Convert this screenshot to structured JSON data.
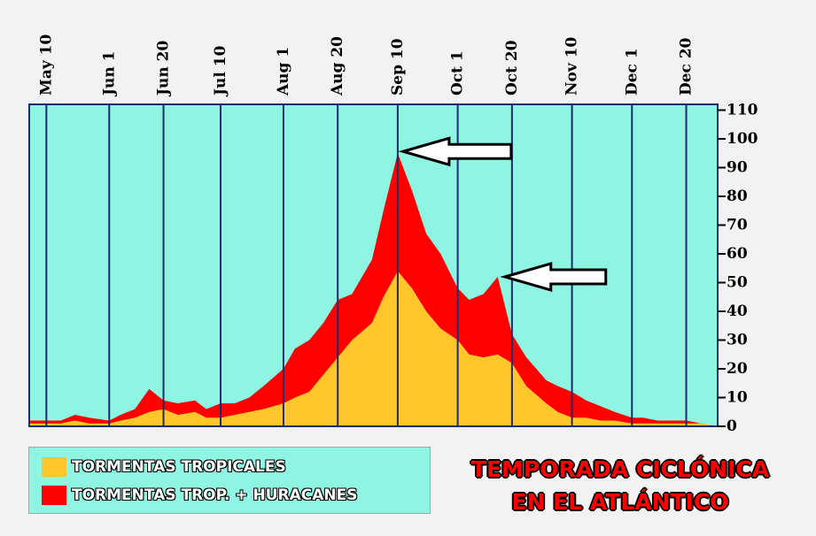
{
  "chart_data": {
    "type": "area",
    "title_lines": [
      "TEMPORADA CICLÓNICA",
      "EN EL ATLÁNTICO"
    ],
    "x_ticks": [
      "May 10",
      "Jun 1",
      "Jun 20",
      "Jul 10",
      "Aug 1",
      "Aug 20",
      "Sep 10",
      "Oct 1",
      "Oct 20",
      "Nov 10",
      "Dec 1",
      "Dec 20"
    ],
    "y_ticks": [
      0,
      10,
      20,
      30,
      40,
      50,
      60,
      70,
      80,
      90,
      100,
      110
    ],
    "ylim": [
      0,
      112
    ],
    "xlim": [
      "May 4",
      "Dec 31"
    ],
    "grid": "vertical lines at x ticks",
    "x": [
      "May 4",
      "May 10",
      "May 15",
      "May 20",
      "May 25",
      "Jun 1",
      "Jun 5",
      "Jun 10",
      "Jun 15",
      "Jun 20",
      "Jun 25",
      "Jul 1",
      "Jul 5",
      "Jul 10",
      "Jul 15",
      "Jul 20",
      "Jul 25",
      "Aug 1",
      "Aug 5",
      "Aug 10",
      "Aug 15",
      "Aug 20",
      "Aug 25",
      "Sep 1",
      "Sep 5",
      "Sep 10",
      "Sep 15",
      "Sep 20",
      "Sep 25",
      "Oct 1",
      "Oct 5",
      "Oct 10",
      "Oct 15",
      "Oct 20",
      "Oct 25",
      "Nov 1",
      "Nov 5",
      "Nov 10",
      "Nov 15",
      "Nov 20",
      "Nov 25",
      "Dec 1",
      "Dec 5",
      "Dec 10",
      "Dec 15",
      "Dec 20",
      "Dec 25",
      "Dec 31"
    ],
    "series": [
      {
        "name": "TORMENTAS TROPICALES",
        "color": "#ffc72c",
        "values": [
          1,
          1,
          1,
          2,
          1,
          1,
          2,
          3,
          5,
          6,
          4,
          5,
          3,
          3,
          4,
          5,
          6,
          8,
          10,
          12,
          18,
          24,
          30,
          36,
          45,
          54,
          48,
          40,
          34,
          30,
          25,
          24,
          25,
          22,
          14,
          8,
          5,
          3,
          3,
          2,
          2,
          1,
          1,
          1,
          1,
          1,
          1,
          0
        ]
      },
      {
        "name": "TORMENTAS TROP. + HURACANES",
        "color": "#ff0000",
        "values": [
          2,
          2,
          2,
          4,
          3,
          2,
          4,
          6,
          13,
          9,
          8,
          9,
          6,
          8,
          8,
          10,
          14,
          20,
          27,
          30,
          36,
          44,
          46,
          58,
          75,
          95,
          82,
          67,
          60,
          48,
          44,
          46,
          52,
          32,
          24,
          16,
          14,
          12,
          9,
          7,
          5,
          3,
          3,
          2,
          2,
          2,
          1,
          0
        ]
      }
    ],
    "annotations": [
      "arrow pointing to peak near Sep 10",
      "arrow pointing to secondary peak near Oct 20"
    ]
  },
  "legend": {
    "items": [
      {
        "label": "TORMENTAS TROPICALES",
        "color": "#ffc72c"
      },
      {
        "label": "TORMENTAS TROP. + HURACANES",
        "color": "#ff0000"
      }
    ]
  },
  "colors": {
    "plot_bg": "#8ff5e3",
    "grid": "#1d2a6a",
    "title": "#ff0000"
  }
}
